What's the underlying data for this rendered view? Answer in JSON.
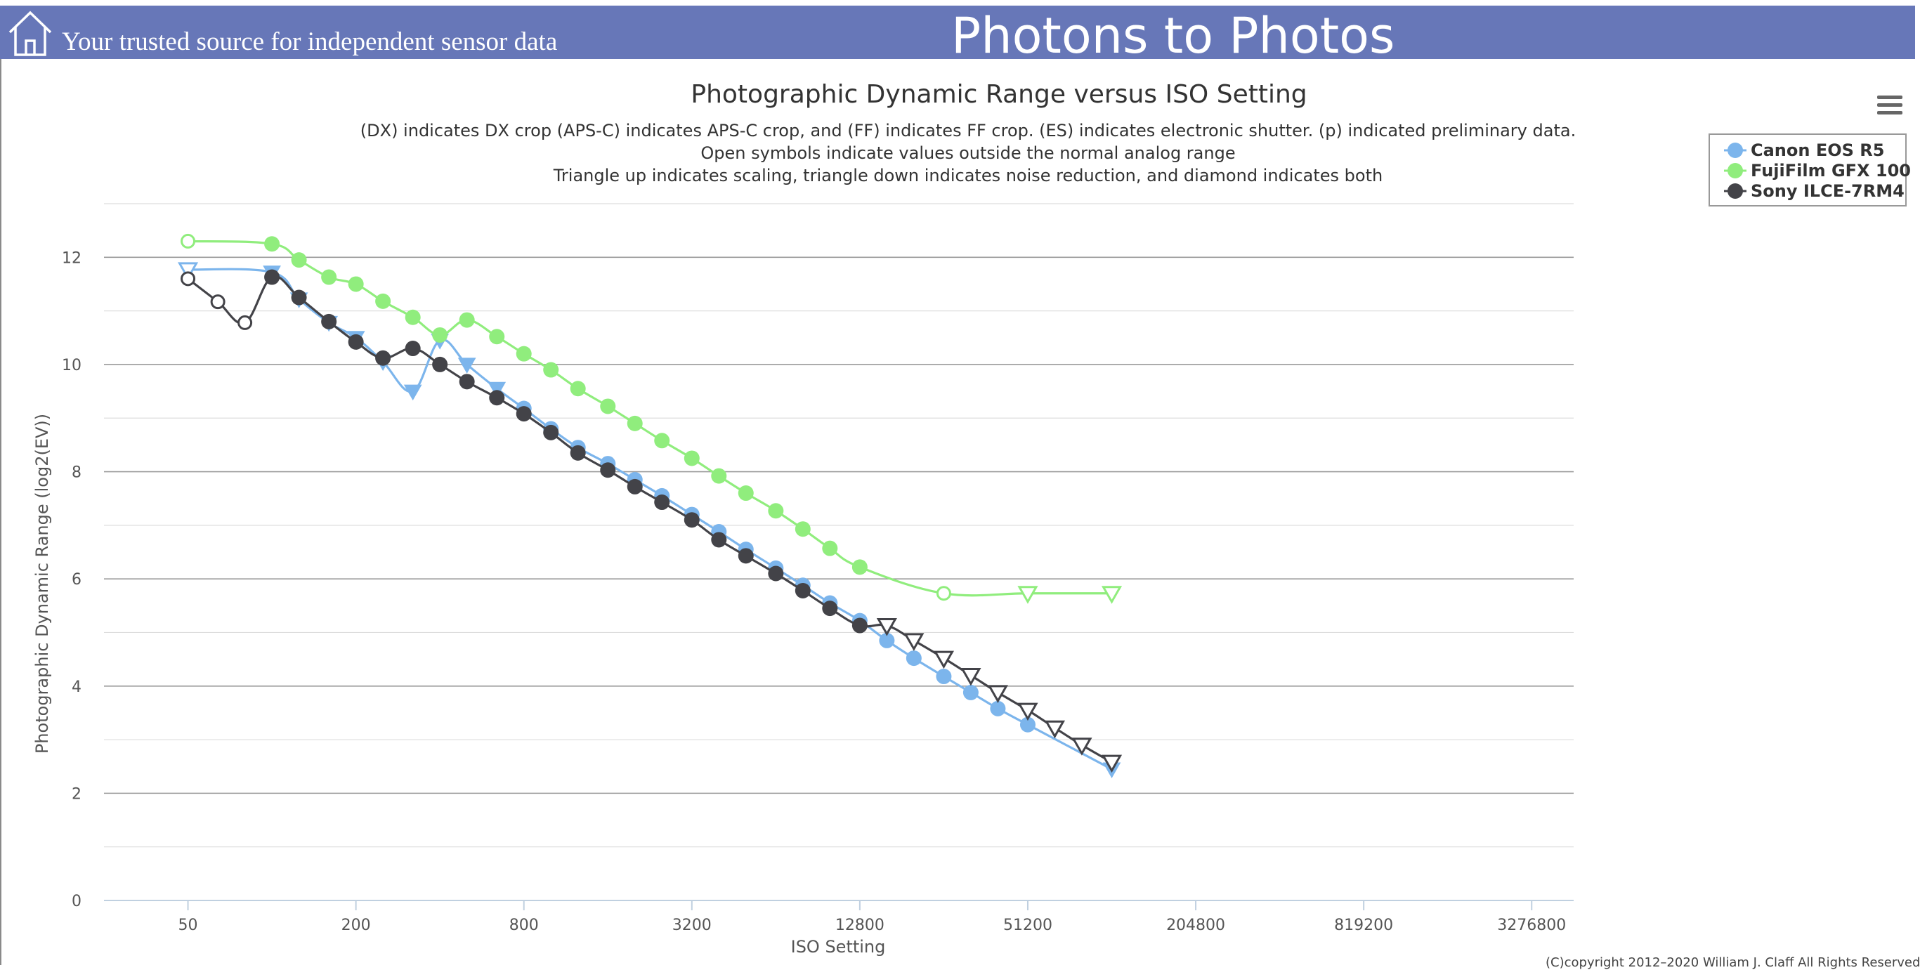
{
  "header": {
    "tagline": "Your trusted source for independent sensor data",
    "brand": "Photons to Photos",
    "background": "#6777b8"
  },
  "icons": {
    "home": "home-icon",
    "menu": "hamburger-menu-icon"
  },
  "copyright": "(C)copyright 2012–2020 William J. Claff All Rights Reserved",
  "chart_data": {
    "type": "line",
    "title": "Photographic Dynamic Range versus ISO Setting",
    "subtitle": [
      "(DX) indicates DX crop (APS-C) indicates APS-C crop, and (FF) indicates FF crop. (ES) indicates electronic shutter. (p) indicated preliminary data.",
      "Open symbols indicate values outside the normal analog range",
      "Triangle up indicates scaling, triangle down indicates noise reduction, and diamond indicates both"
    ],
    "xlabel": "ISO Setting",
    "ylabel": "Photographic Dynamic Range (log2(EV))",
    "x_scale": "log2",
    "xlim": [
      25,
      4634000
    ],
    "ylim": [
      0,
      13
    ],
    "x_ticks": [
      {
        "value": 50,
        "label": "50"
      },
      {
        "value": 200,
        "label": "200"
      },
      {
        "value": 800,
        "label": "800"
      },
      {
        "value": 3200,
        "label": "3200"
      },
      {
        "value": 12800,
        "label": "12800"
      },
      {
        "value": 51200,
        "label": "51200"
      },
      {
        "value": 204800,
        "label": "204800"
      },
      {
        "value": 819200,
        "label": "819200"
      },
      {
        "value": 3276800,
        "label": "3276800"
      }
    ],
    "y_ticks": [
      0,
      2,
      4,
      6,
      8,
      10,
      12
    ],
    "grid": true,
    "legend": "top-right",
    "series": [
      {
        "name": "Canon EOS R5",
        "color": "#7cb5ec",
        "points": [
          {
            "x": 50,
            "y": 11.77,
            "marker": "triangle-down-open"
          },
          {
            "x": 100,
            "y": 11.72,
            "marker": "triangle-down"
          },
          {
            "x": 125,
            "y": 11.22,
            "marker": "triangle-down"
          },
          {
            "x": 160,
            "y": 10.78,
            "marker": "triangle-down"
          },
          {
            "x": 200,
            "y": 10.5,
            "marker": "triangle-down"
          },
          {
            "x": 250,
            "y": 10.05,
            "marker": "triangle-down"
          },
          {
            "x": 320,
            "y": 9.5,
            "marker": "triangle-down"
          },
          {
            "x": 400,
            "y": 10.45,
            "marker": "triangle-down"
          },
          {
            "x": 500,
            "y": 10.0,
            "marker": "triangle-down"
          },
          {
            "x": 640,
            "y": 9.55,
            "marker": "triangle-down"
          },
          {
            "x": 800,
            "y": 9.18,
            "marker": "circle"
          },
          {
            "x": 1000,
            "y": 8.8,
            "marker": "circle"
          },
          {
            "x": 1250,
            "y": 8.45,
            "marker": "circle"
          },
          {
            "x": 1600,
            "y": 8.15,
            "marker": "circle"
          },
          {
            "x": 2000,
            "y": 7.85,
            "marker": "circle"
          },
          {
            "x": 2500,
            "y": 7.55,
            "marker": "circle"
          },
          {
            "x": 3200,
            "y": 7.2,
            "marker": "circle"
          },
          {
            "x": 4000,
            "y": 6.88,
            "marker": "circle"
          },
          {
            "x": 5000,
            "y": 6.55,
            "marker": "circle"
          },
          {
            "x": 6400,
            "y": 6.2,
            "marker": "circle"
          },
          {
            "x": 8000,
            "y": 5.88,
            "marker": "circle"
          },
          {
            "x": 10000,
            "y": 5.55,
            "marker": "circle"
          },
          {
            "x": 12800,
            "y": 5.22,
            "marker": "circle"
          },
          {
            "x": 16000,
            "y": 4.85,
            "marker": "circle"
          },
          {
            "x": 20000,
            "y": 4.52,
            "marker": "circle"
          },
          {
            "x": 25600,
            "y": 4.18,
            "marker": "circle"
          },
          {
            "x": 32000,
            "y": 3.88,
            "marker": "circle"
          },
          {
            "x": 40000,
            "y": 3.58,
            "marker": "circle"
          },
          {
            "x": 51200,
            "y": 3.28,
            "marker": "circle"
          },
          {
            "x": 102400,
            "y": 2.45,
            "marker": "triangle-down"
          }
        ]
      },
      {
        "name": "FujiFilm GFX 100",
        "color": "#90ed7d",
        "points": [
          {
            "x": 50,
            "y": 12.3,
            "marker": "circle-open"
          },
          {
            "x": 100,
            "y": 12.25,
            "marker": "circle"
          },
          {
            "x": 125,
            "y": 11.95,
            "marker": "circle"
          },
          {
            "x": 160,
            "y": 11.63,
            "marker": "circle"
          },
          {
            "x": 200,
            "y": 11.5,
            "marker": "circle"
          },
          {
            "x": 250,
            "y": 11.18,
            "marker": "circle"
          },
          {
            "x": 320,
            "y": 10.88,
            "marker": "circle"
          },
          {
            "x": 400,
            "y": 10.55,
            "marker": "circle"
          },
          {
            "x": 500,
            "y": 10.83,
            "marker": "circle"
          },
          {
            "x": 640,
            "y": 10.52,
            "marker": "circle"
          },
          {
            "x": 800,
            "y": 10.2,
            "marker": "circle"
          },
          {
            "x": 1000,
            "y": 9.9,
            "marker": "circle"
          },
          {
            "x": 1250,
            "y": 9.55,
            "marker": "circle"
          },
          {
            "x": 1600,
            "y": 9.22,
            "marker": "circle"
          },
          {
            "x": 2000,
            "y": 8.9,
            "marker": "circle"
          },
          {
            "x": 2500,
            "y": 8.58,
            "marker": "circle"
          },
          {
            "x": 3200,
            "y": 8.25,
            "marker": "circle"
          },
          {
            "x": 4000,
            "y": 7.92,
            "marker": "circle"
          },
          {
            "x": 5000,
            "y": 7.6,
            "marker": "circle"
          },
          {
            "x": 6400,
            "y": 7.27,
            "marker": "circle"
          },
          {
            "x": 8000,
            "y": 6.93,
            "marker": "circle"
          },
          {
            "x": 10000,
            "y": 6.57,
            "marker": "circle"
          },
          {
            "x": 12800,
            "y": 6.22,
            "marker": "circle"
          },
          {
            "x": 25600,
            "y": 5.73,
            "marker": "circle-open"
          },
          {
            "x": 51200,
            "y": 5.73,
            "marker": "triangle-down-open"
          },
          {
            "x": 102400,
            "y": 5.73,
            "marker": "triangle-down-open"
          }
        ]
      },
      {
        "name": "Sony ILCE-7RM4",
        "color": "#434348",
        "points": [
          {
            "x": 50,
            "y": 11.6,
            "marker": "circle-open"
          },
          {
            "x": 64,
            "y": 11.17,
            "marker": "circle-open"
          },
          {
            "x": 80,
            "y": 10.78,
            "marker": "circle-open"
          },
          {
            "x": 100,
            "y": 11.63,
            "marker": "circle"
          },
          {
            "x": 125,
            "y": 11.25,
            "marker": "circle"
          },
          {
            "x": 160,
            "y": 10.8,
            "marker": "circle"
          },
          {
            "x": 200,
            "y": 10.42,
            "marker": "circle"
          },
          {
            "x": 250,
            "y": 10.12,
            "marker": "circle"
          },
          {
            "x": 320,
            "y": 10.3,
            "marker": "circle"
          },
          {
            "x": 400,
            "y": 10.0,
            "marker": "circle"
          },
          {
            "x": 500,
            "y": 9.68,
            "marker": "circle"
          },
          {
            "x": 640,
            "y": 9.38,
            "marker": "circle"
          },
          {
            "x": 800,
            "y": 9.08,
            "marker": "circle"
          },
          {
            "x": 1000,
            "y": 8.73,
            "marker": "circle"
          },
          {
            "x": 1250,
            "y": 8.35,
            "marker": "circle"
          },
          {
            "x": 1600,
            "y": 8.03,
            "marker": "circle"
          },
          {
            "x": 2000,
            "y": 7.72,
            "marker": "circle"
          },
          {
            "x": 2500,
            "y": 7.43,
            "marker": "circle"
          },
          {
            "x": 3200,
            "y": 7.1,
            "marker": "circle"
          },
          {
            "x": 4000,
            "y": 6.73,
            "marker": "circle"
          },
          {
            "x": 5000,
            "y": 6.43,
            "marker": "circle"
          },
          {
            "x": 6400,
            "y": 6.1,
            "marker": "circle"
          },
          {
            "x": 8000,
            "y": 5.78,
            "marker": "circle"
          },
          {
            "x": 10000,
            "y": 5.45,
            "marker": "circle"
          },
          {
            "x": 12800,
            "y": 5.13,
            "marker": "circle"
          },
          {
            "x": 16000,
            "y": 5.13,
            "marker": "triangle-down-open"
          },
          {
            "x": 20000,
            "y": 4.85,
            "marker": "triangle-down-open"
          },
          {
            "x": 25600,
            "y": 4.52,
            "marker": "triangle-down-open"
          },
          {
            "x": 32000,
            "y": 4.2,
            "marker": "triangle-down-open"
          },
          {
            "x": 40000,
            "y": 3.88,
            "marker": "triangle-down-open"
          },
          {
            "x": 51200,
            "y": 3.55,
            "marker": "triangle-down-open"
          },
          {
            "x": 64000,
            "y": 3.22,
            "marker": "triangle-down-open"
          },
          {
            "x": 80000,
            "y": 2.9,
            "marker": "triangle-down-open"
          },
          {
            "x": 102400,
            "y": 2.58,
            "marker": "triangle-down-open"
          }
        ]
      }
    ]
  }
}
